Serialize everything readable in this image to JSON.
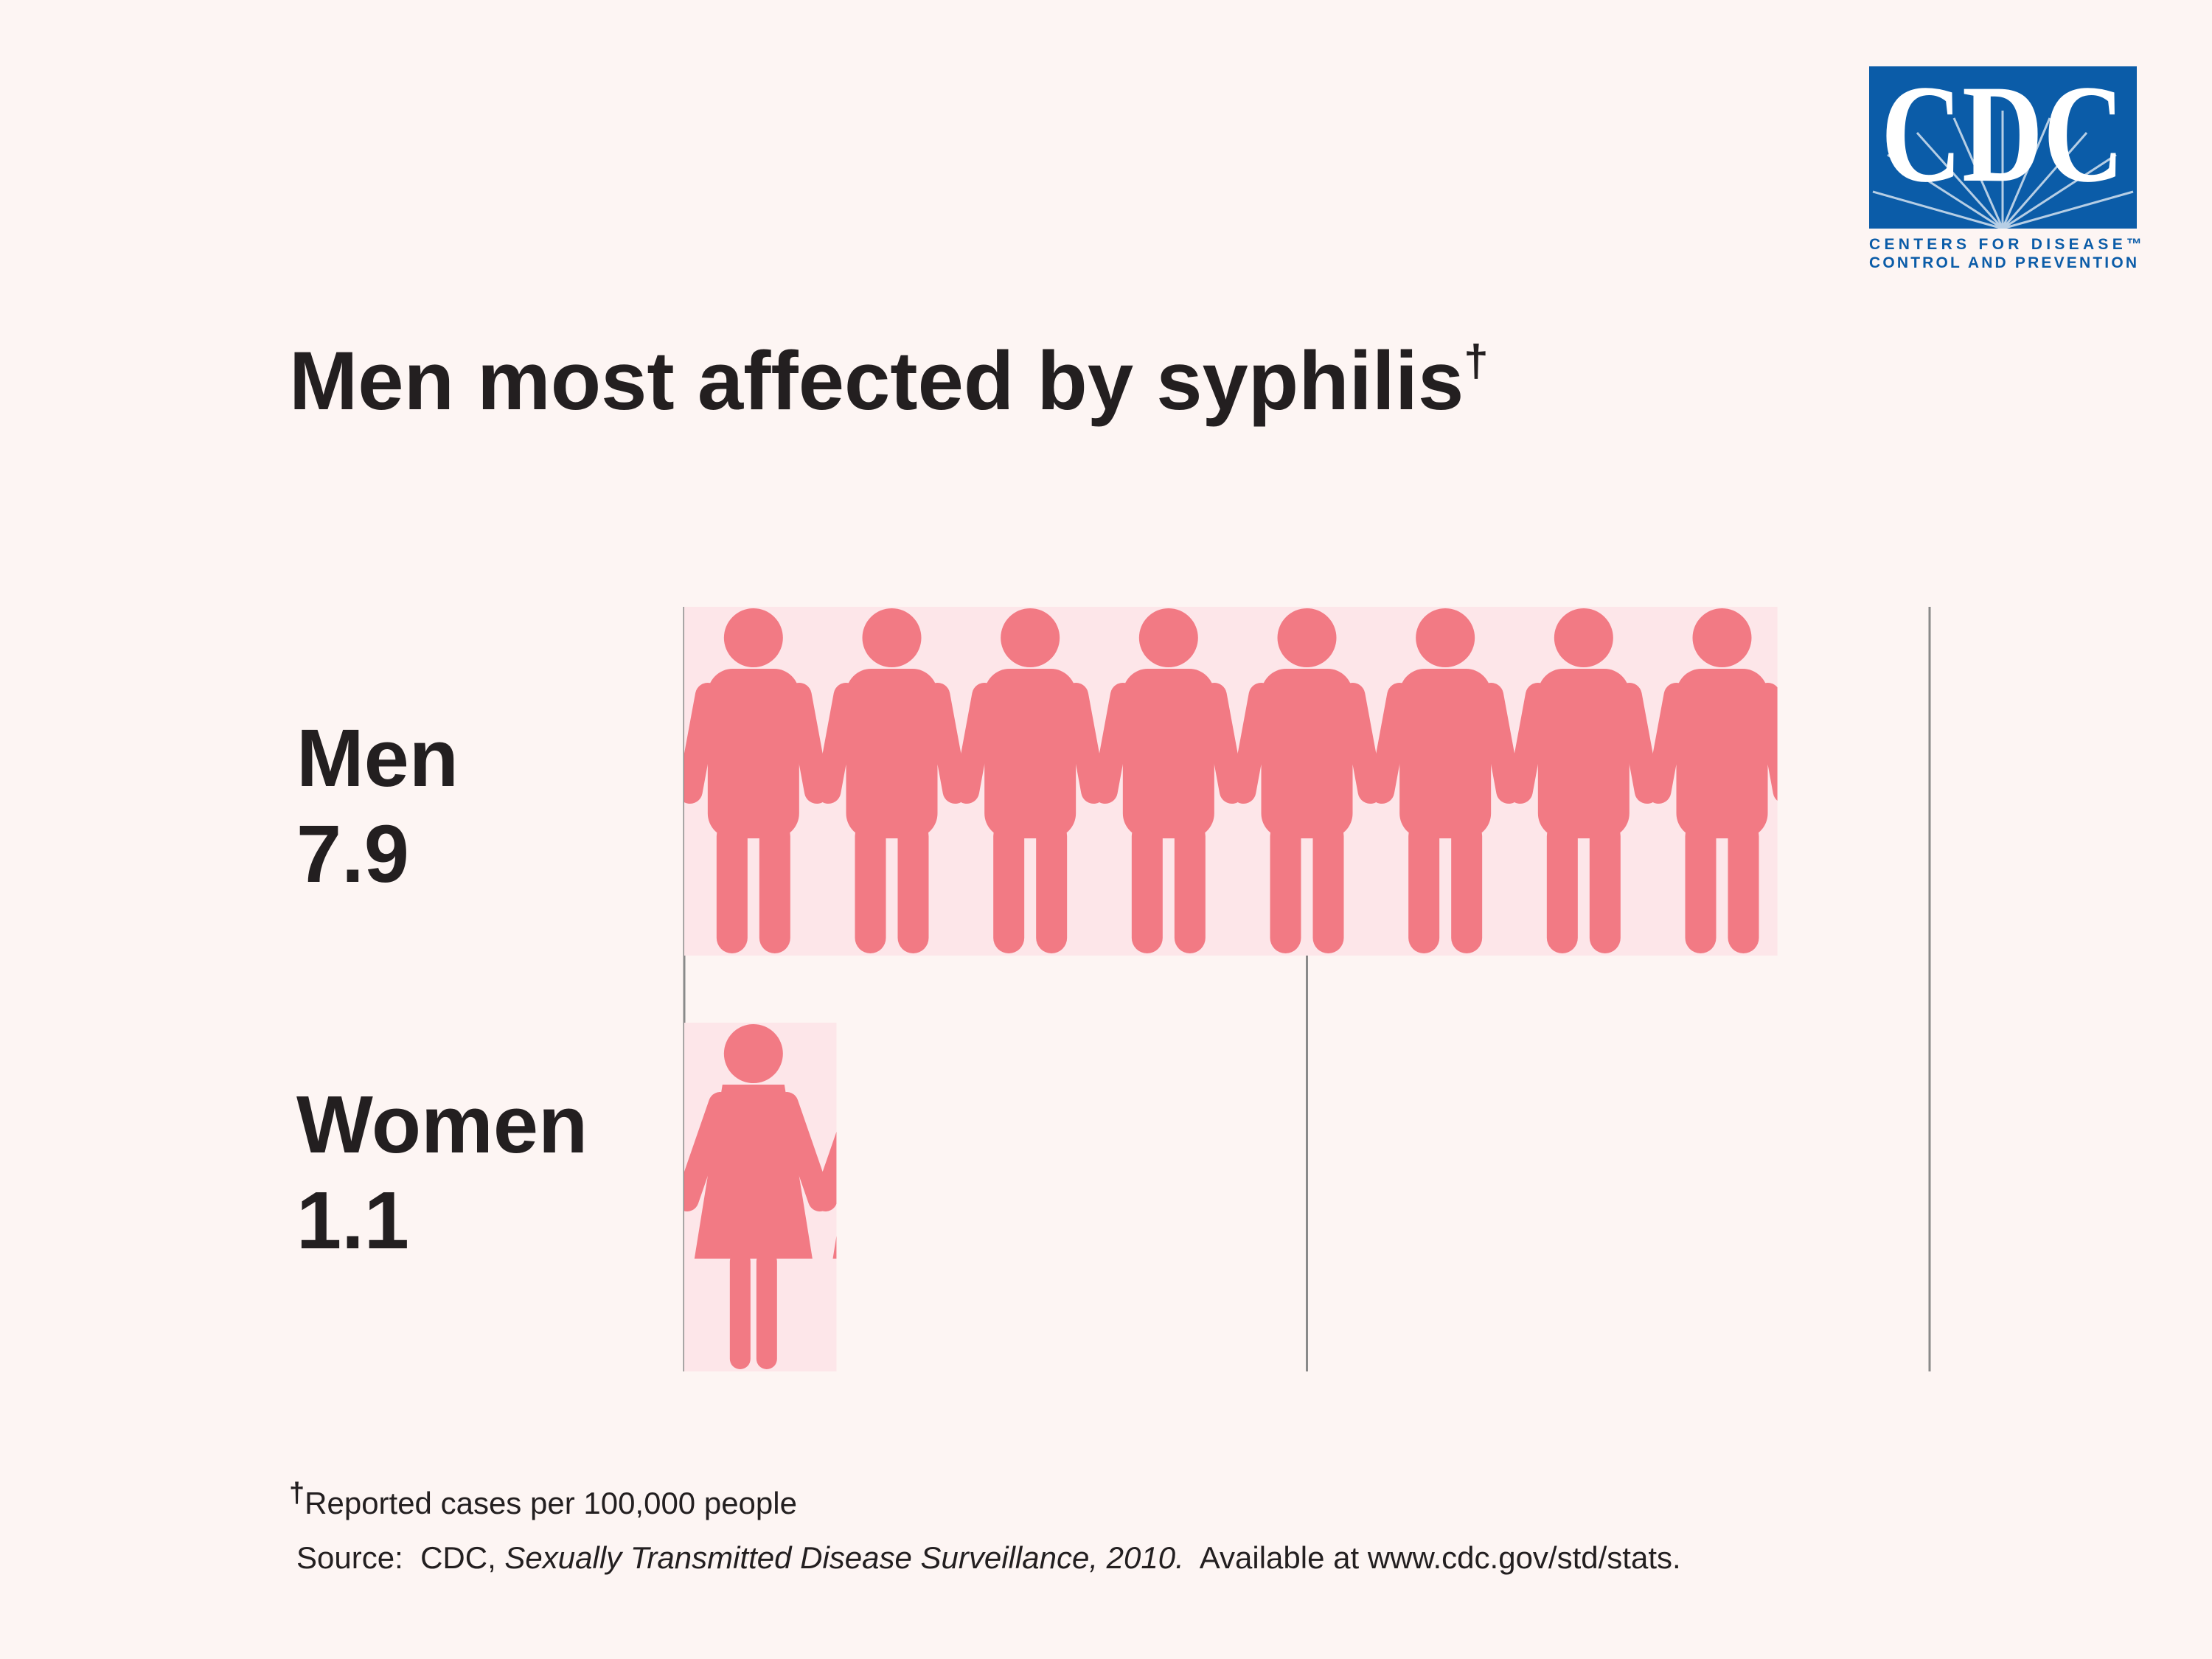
{
  "logo": {
    "name": "CDC",
    "line1": "CENTERS FOR DISEASE™",
    "line2": "CONTROL AND PREVENTION"
  },
  "chart_data": {
    "type": "pictogram",
    "title": "Men most affected by syphilis",
    "title_mark": "†",
    "categories": [
      "Men",
      "Women"
    ],
    "values": [
      7.9,
      1.1
    ],
    "icons": [
      "man",
      "woman"
    ],
    "color": "#f27a84",
    "bar_color": "#fde6e9",
    "xlim": [
      0,
      9
    ],
    "xticks": [
      0,
      4.5,
      9
    ],
    "show_tick_labels": false,
    "grid": true,
    "footnote_mark": "†",
    "footnote": "Reported cases per 100,000 people",
    "source_prefix": "Source:  CDC, ",
    "source_title": "Sexually Transmitted Disease Surveillance, 2010.",
    "source_suffix": "  Available at www.cdc.gov/std/stats."
  }
}
